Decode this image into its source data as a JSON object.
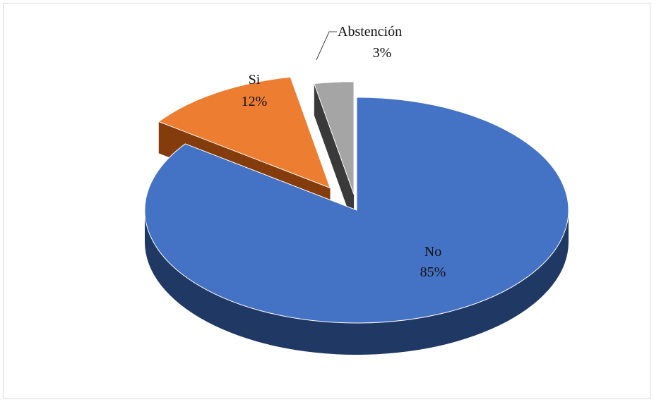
{
  "chart_data": {
    "type": "pie",
    "style": "3d-exploded",
    "title": "",
    "slices": [
      {
        "label": "No",
        "value": 85,
        "pct_label": "85%",
        "color": "#4472c4",
        "side": "#1f3864"
      },
      {
        "label": "Si",
        "value": 12,
        "pct_label": "12%",
        "color": "#ed7d31",
        "side": "#843c0c"
      },
      {
        "label": "Abstención",
        "value": 3,
        "pct_label": "3%",
        "color": "#a5a5a5",
        "side": "#3a3a3a"
      }
    ],
    "legend": "none",
    "data_labels": "label and percentage"
  }
}
